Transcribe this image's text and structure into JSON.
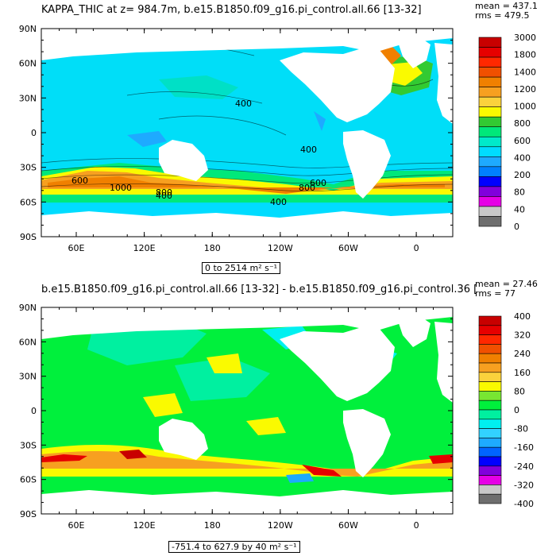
{
  "panels": [
    {
      "title": "KAPPA_THIC at z= 984.7m, b.e15.B1850.f09_g16.pi_control.all.66 [13-32]",
      "mean": "mean = 437.1",
      "rms": "rms = 479.5",
      "range": "0 to 2514 m² s⁻¹",
      "contour_labels": [
        "400",
        "400",
        "600",
        "600",
        "800",
        "800",
        "1000",
        "400",
        "400"
      ],
      "colorbar": {
        "labels": [
          "3000",
          "1800",
          "1400",
          "1200",
          "1000",
          "800",
          "600",
          "400",
          "200",
          "80",
          "40",
          "0"
        ],
        "colors": [
          "#c80000",
          "#e60000",
          "#ff2800",
          "#f05000",
          "#f08000",
          "#f7a020",
          "#fbd23c",
          "#fafa00",
          "#32ca32",
          "#00e87a",
          "#00eaca",
          "#00dcff",
          "#1eaaff",
          "#0080ff",
          "#0000ff",
          "#8200dc",
          "#e600e6",
          "#c8c8c8",
          "#6e6e6e"
        ]
      }
    },
    {
      "title": "b.e15.B1850.f09_g16.pi_control.all.66 [13-32] - b.e15.B1850.f09_g16.pi_control.36 [",
      "mean": "mean = 27.46",
      "rms": "rms = 77",
      "range": "-751.4 to 627.9 by 40 m² s⁻¹",
      "colorbar": {
        "labels": [
          "400",
          "320",
          "240",
          "160",
          "80",
          "0",
          "-80",
          "-160",
          "-240",
          "-320",
          "-400"
        ],
        "colors": [
          "#c80000",
          "#e60000",
          "#ff2800",
          "#f05000",
          "#f08000",
          "#f7a020",
          "#fbd23c",
          "#fafa00",
          "#78e632",
          "#00f03c",
          "#00f0a0",
          "#00f0f0",
          "#32d2ff",
          "#1eaaff",
          "#0064ff",
          "#0000ff",
          "#8200dc",
          "#e600e6",
          "#c8c8c8",
          "#6e6e6e"
        ]
      }
    }
  ],
  "axes": {
    "lat_labels": [
      "90N",
      "60N",
      "30N",
      "0",
      "30S",
      "60S",
      "90S"
    ],
    "lon_labels": [
      "60E",
      "120E",
      "180",
      "120W",
      "60W",
      "0"
    ]
  },
  "chart_data": [
    {
      "type": "heatmap",
      "title": "KAPPA_THIC at z= 984.7m, b.e15.B1850.f09_g16.pi_control.all.66 [13-32]",
      "variable": "KAPPA_THIC",
      "units": "m² s⁻¹",
      "depth": "984.7m",
      "x_ticks": [
        "60E",
        "120E",
        "180",
        "120W",
        "60W",
        "0"
      ],
      "y_ticks": [
        "90N",
        "60N",
        "30N",
        "0",
        "30S",
        "60S",
        "90S"
      ],
      "lon_range": [
        30,
        390
      ],
      "lat_range": [
        -90,
        90
      ],
      "levels": [
        0,
        40,
        80,
        200,
        400,
        600,
        800,
        1000,
        1200,
        1400,
        1800,
        3000
      ],
      "mean": 437.1,
      "rms": 479.5,
      "min": 0,
      "max": 2514,
      "contour_labels": [
        "400",
        "600",
        "800",
        "1000"
      ]
    },
    {
      "type": "heatmap",
      "title": "b.e15.B1850.f09_g16.pi_control.all.66 [13-32] - b.e15.B1850.f09_g16.pi_control.36 [",
      "units": "m² s⁻¹",
      "x_ticks": [
        "60E",
        "120E",
        "180",
        "120W",
        "60W",
        "0"
      ],
      "y_ticks": [
        "90N",
        "60N",
        "30N",
        "0",
        "30S",
        "60S",
        "90S"
      ],
      "lon_range": [
        30,
        390
      ],
      "lat_range": [
        -90,
        90
      ],
      "levels": [
        -400,
        -320,
        -240,
        -160,
        -80,
        0,
        80,
        160,
        240,
        320,
        400
      ],
      "mean": 27.46,
      "rms": 77,
      "min": -751.4,
      "max": 627.9,
      "interval": 40
    }
  ]
}
